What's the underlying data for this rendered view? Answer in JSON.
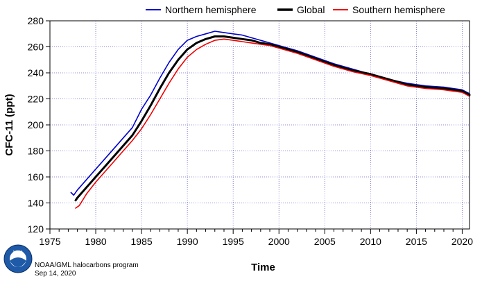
{
  "credit": {
    "program": "NOAA/GML halocarbons program",
    "date": "Sep 14, 2020",
    "logo_text": "NOAA"
  },
  "colors": {
    "northern": "#0000cc",
    "global": "#000000",
    "southern": "#ee0000",
    "grid": "#6666cc"
  },
  "chart_data": {
    "type": "line",
    "title": "",
    "xlabel": "Time",
    "ylabel": "CFC-11 (ppt)",
    "xlim": [
      1975,
      2020.8
    ],
    "ylim": [
      120,
      280
    ],
    "xticks": [
      1975,
      1980,
      1985,
      1990,
      1995,
      2000,
      2005,
      2010,
      2015,
      2020
    ],
    "yticks": [
      120,
      140,
      160,
      180,
      200,
      220,
      240,
      260,
      280
    ],
    "grid": true,
    "legend_position": "top",
    "series": [
      {
        "name": "Northern hemisphere",
        "color_key": "northern",
        "stroke": 1.6,
        "x": [
          1977.3,
          1977.6,
          1978.0,
          1979.0,
          1980.0,
          1981.0,
          1982.0,
          1983.0,
          1984.0,
          1985.0,
          1986.0,
          1987.0,
          1988.0,
          1989.0,
          1990.0,
          1991.0,
          1992.0,
          1993.0,
          1994.0,
          1995.0,
          1996.0,
          1997.0,
          1998.0,
          1999.0,
          2000.0,
          2002.0,
          2004.0,
          2006.0,
          2008.0,
          2010.0,
          2012.0,
          2014.0,
          2016.0,
          2018.0,
          2019.0,
          2020.0,
          2020.8
        ],
        "y": [
          148,
          146,
          150,
          158,
          166,
          174,
          182,
          190,
          198,
          212,
          223,
          236,
          248,
          258,
          265,
          268,
          270,
          272,
          271,
          270,
          269,
          267,
          265,
          263,
          261,
          257,
          252,
          247,
          243,
          239,
          235,
          232,
          230,
          229,
          228,
          227,
          224
        ]
      },
      {
        "name": "Global",
        "color_key": "global",
        "stroke": 3,
        "x": [
          1977.8,
          1978.0,
          1979.0,
          1980.0,
          1981.0,
          1982.0,
          1983.0,
          1984.0,
          1985.0,
          1986.0,
          1987.0,
          1988.0,
          1989.0,
          1990.0,
          1991.0,
          1992.0,
          1993.0,
          1994.0,
          1995.0,
          1996.0,
          1997.0,
          1998.0,
          1999.0,
          2000.0,
          2002.0,
          2004.0,
          2006.0,
          2008.0,
          2010.0,
          2012.0,
          2014.0,
          2016.0,
          2018.0,
          2019.0,
          2020.0,
          2020.8
        ],
        "y": [
          142,
          144,
          152,
          160,
          168,
          176,
          184,
          192,
          203,
          215,
          228,
          240,
          250,
          258,
          263,
          266,
          268,
          268,
          267,
          266,
          265,
          263,
          262,
          260,
          256,
          251,
          246,
          242,
          239,
          235,
          231,
          229,
          228,
          227,
          226,
          223
        ]
      },
      {
        "name": "Southern hemisphere",
        "color_key": "southern",
        "stroke": 1.6,
        "x": [
          1977.8,
          1978.2,
          1979.0,
          1980.0,
          1981.0,
          1982.0,
          1983.0,
          1984.0,
          1985.0,
          1986.0,
          1987.0,
          1988.0,
          1989.0,
          1990.0,
          1991.0,
          1992.0,
          1993.0,
          1994.0,
          1995.0,
          1996.0,
          1997.0,
          1998.0,
          1999.0,
          2000.0,
          2002.0,
          2004.0,
          2006.0,
          2008.0,
          2010.0,
          2012.0,
          2014.0,
          2016.0,
          2018.0,
          2019.0,
          2020.0,
          2020.8
        ],
        "y": [
          136,
          138,
          147,
          156,
          164,
          172,
          180,
          188,
          197,
          208,
          220,
          232,
          243,
          252,
          258,
          262,
          265,
          266,
          265,
          264,
          263,
          262,
          261,
          259,
          255,
          250,
          245,
          241,
          238,
          234,
          230,
          228,
          227,
          226,
          225,
          222
        ]
      }
    ]
  }
}
